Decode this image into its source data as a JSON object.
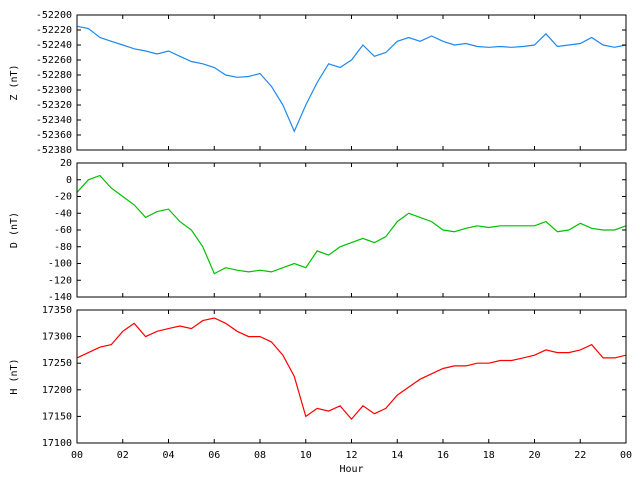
{
  "chart_data": [
    {
      "type": "line",
      "ylabel": "Z (nT)",
      "xlim": [
        0,
        24
      ],
      "xticks": [
        0,
        2,
        4,
        6,
        8,
        10,
        12,
        14,
        16,
        18,
        20,
        22,
        24
      ],
      "ylim": [
        -52380,
        -52200
      ],
      "yticks": [
        -52200,
        -52220,
        -52240,
        -52260,
        -52280,
        -52300,
        -52320,
        -52340,
        -52360,
        -52380
      ],
      "x": [
        0,
        0.5,
        1,
        1.5,
        2,
        2.5,
        3,
        3.5,
        4,
        4.5,
        5,
        5.5,
        6,
        6.5,
        7,
        7.5,
        8,
        8.5,
        9,
        9.5,
        10,
        10.5,
        11,
        11.5,
        12,
        12.5,
        13,
        13.5,
        14,
        14.5,
        15,
        15.5,
        16,
        16.5,
        17,
        17.5,
        18,
        18.5,
        19,
        19.5,
        20,
        20.5,
        21,
        21.5,
        22,
        22.5,
        23,
        23.5,
        24
      ],
      "series": [
        {
          "color": "#1e88f0",
          "values": [
            -52215,
            -52218,
            -52230,
            -52235,
            -52240,
            -52245,
            -52248,
            -52252,
            -52248,
            -52255,
            -52262,
            -52265,
            -52270,
            -52280,
            -52283,
            -52282,
            -52278,
            -52295,
            -52320,
            -52355,
            -52320,
            -52290,
            -52265,
            -52270,
            -52260,
            -52240,
            -52255,
            -52250,
            -52235,
            -52230,
            -52235,
            -52228,
            -52235,
            -52240,
            -52238,
            -52242,
            -52243,
            -52242,
            -52243,
            -52242,
            -52240,
            -52225,
            -52242,
            -52240,
            -52238,
            -52230,
            -52240,
            -52243,
            -52240
          ]
        }
      ]
    },
    {
      "type": "line",
      "ylabel": "D (nT)",
      "xlim": [
        0,
        24
      ],
      "xticks": [
        0,
        2,
        4,
        6,
        8,
        10,
        12,
        14,
        16,
        18,
        20,
        22,
        24
      ],
      "ylim": [
        -140,
        20
      ],
      "yticks": [
        20,
        0,
        -20,
        -40,
        -60,
        -80,
        -100,
        -120,
        -140
      ],
      "x": [
        0,
        0.5,
        1,
        1.5,
        2,
        2.5,
        3,
        3.5,
        4,
        4.5,
        5,
        5.5,
        6,
        6.5,
        7,
        7.5,
        8,
        8.5,
        9,
        9.5,
        10,
        10.5,
        11,
        11.5,
        12,
        12.5,
        13,
        13.5,
        14,
        14.5,
        15,
        15.5,
        16,
        16.5,
        17,
        17.5,
        18,
        18.5,
        19,
        19.5,
        20,
        20.5,
        21,
        21.5,
        22,
        22.5,
        23,
        23.5,
        24
      ],
      "series": [
        {
          "color": "#00c000",
          "values": [
            -15,
            0,
            5,
            -10,
            -20,
            -30,
            -45,
            -38,
            -35,
            -50,
            -60,
            -80,
            -112,
            -105,
            -108,
            -110,
            -108,
            -110,
            -105,
            -100,
            -105,
            -85,
            -90,
            -80,
            -75,
            -70,
            -75,
            -68,
            -50,
            -40,
            -45,
            -50,
            -60,
            -62,
            -58,
            -55,
            -57,
            -55,
            -55,
            -55,
            -55,
            -50,
            -62,
            -60,
            -52,
            -58,
            -60,
            -60,
            -55
          ]
        }
      ]
    },
    {
      "type": "line",
      "ylabel": "H (nT)",
      "xlabel": "Hour",
      "xlim": [
        0,
        24
      ],
      "xticks": [
        {
          "value": 0,
          "label": "00"
        },
        {
          "value": 2,
          "label": "02"
        },
        {
          "value": 4,
          "label": "04"
        },
        {
          "value": 6,
          "label": "06"
        },
        {
          "value": 8,
          "label": "08"
        },
        10,
        12,
        14,
        16,
        18,
        20,
        22,
        {
          "value": 24,
          "label": "00"
        }
      ],
      "ylim": [
        17100,
        17350
      ],
      "yticks": [
        17100,
        17150,
        17200,
        17250,
        17300,
        17350
      ],
      "x": [
        0,
        0.5,
        1,
        1.5,
        2,
        2.5,
        3,
        3.5,
        4,
        4.5,
        5,
        5.5,
        6,
        6.5,
        7,
        7.5,
        8,
        8.5,
        9,
        9.5,
        10,
        10.5,
        11,
        11.5,
        12,
        12.5,
        13,
        13.5,
        14,
        14.5,
        15,
        15.5,
        16,
        16.5,
        17,
        17.5,
        18,
        18.5,
        19,
        19.5,
        20,
        20.5,
        21,
        21.5,
        22,
        22.5,
        23,
        23.5,
        24
      ],
      "series": [
        {
          "color": "#ff0000",
          "values": [
            17260,
            17270,
            17280,
            17285,
            17310,
            17325,
            17300,
            17310,
            17315,
            17320,
            17315,
            17330,
            17335,
            17325,
            17310,
            17300,
            17300,
            17290,
            17265,
            17225,
            17150,
            17165,
            17160,
            17170,
            17145,
            17170,
            17155,
            17165,
            17190,
            17205,
            17220,
            17230,
            17240,
            17245,
            17245,
            17250,
            17250,
            17255,
            17255,
            17260,
            17265,
            17275,
            17270,
            17270,
            17275,
            17285,
            17260,
            17260,
            17265
          ]
        }
      ]
    }
  ]
}
